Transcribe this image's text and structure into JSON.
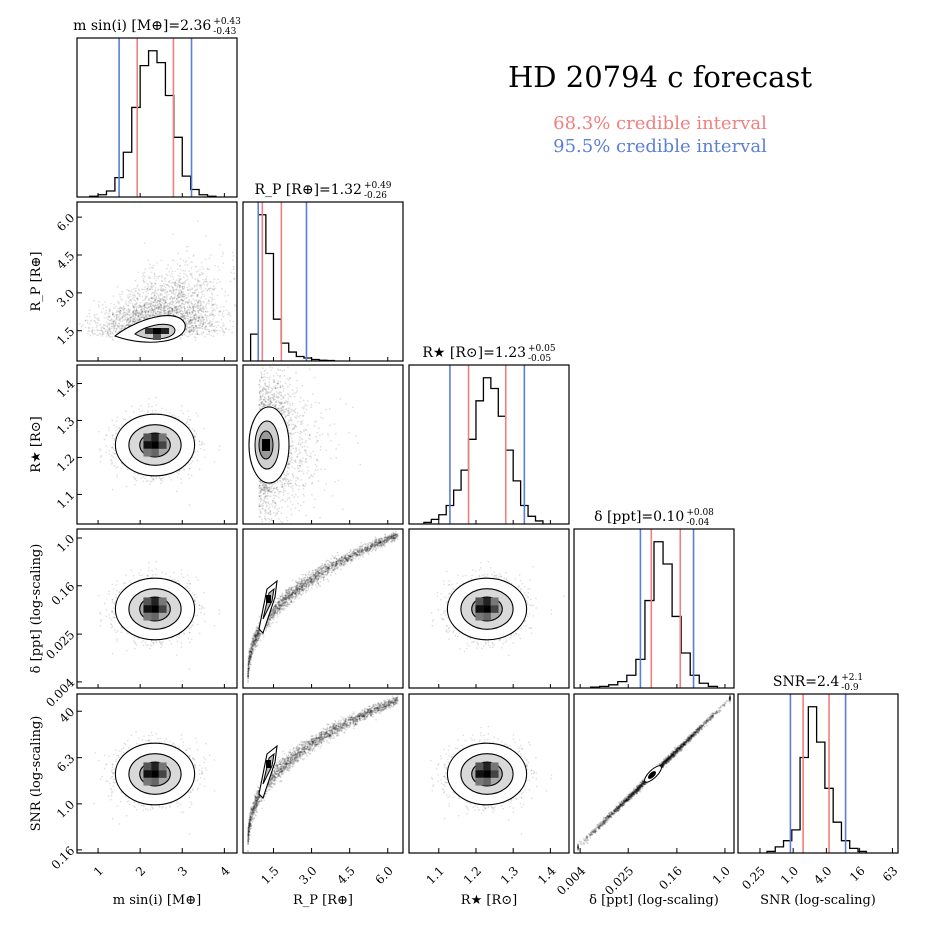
{
  "chart_data": {
    "type": "corner",
    "title": "HD 20794 c forecast",
    "legend": [
      {
        "label": "68.3% credible interval",
        "color": "#f08080"
      },
      {
        "label": "95.5% credible interval",
        "color": "#5b7fd6"
      }
    ],
    "interval_colors": {
      "ci68": "#f08080",
      "ci95": "#5b7fd6"
    },
    "parameters": [
      {
        "key": "m",
        "axis_label": "m sin(i) [M⊕]",
        "title": {
          "name": "m sin(i) [M⊕]",
          "median": "2.36",
          "plus": "+0.43",
          "minus": "-0.43"
        },
        "range": [
          0.5,
          4.3
        ],
        "ticks": [
          {
            "v": 1,
            "t": "1"
          },
          {
            "v": 2,
            "t": "2"
          },
          {
            "v": 3,
            "t": "3"
          },
          {
            "v": 4,
            "t": "4"
          }
        ],
        "median": 2.36,
        "ci68": [
          1.93,
          2.79
        ],
        "ci95": [
          1.5,
          3.22
        ],
        "hist_centers": [
          0.9,
          1.1,
          1.3,
          1.5,
          1.7,
          1.9,
          2.1,
          2.3,
          2.5,
          2.7,
          2.9,
          3.1,
          3.3,
          3.5,
          3.7
        ],
        "hist_values": [
          0.5,
          1.5,
          4,
          13,
          30,
          60,
          88,
          98,
          90,
          68,
          40,
          14,
          5,
          1.5,
          0.5
        ]
      },
      {
        "key": "rp",
        "axis_label": "R_P [R⊕]",
        "title": {
          "name": "R_P [R⊕]",
          "median": "1.32",
          "plus": "+0.49",
          "minus": "-0.26"
        },
        "range": [
          0.3,
          6.6
        ],
        "ticks": [
          {
            "v": 1.5,
            "t": "1.5"
          },
          {
            "v": 3.0,
            "t": "3.0"
          },
          {
            "v": 4.5,
            "t": "4.5"
          },
          {
            "v": 6.0,
            "t": "6.0"
          }
        ],
        "median": 1.32,
        "ci68": [
          1.06,
          1.81
        ],
        "ci95": [
          0.9,
          2.8
        ],
        "hist_centers": [
          0.75,
          1.05,
          1.35,
          1.65,
          1.95,
          2.25,
          2.55,
          2.85,
          3.15,
          3.45,
          3.75
        ],
        "hist_values": [
          18,
          98,
          72,
          28,
          12,
          6,
          3,
          2,
          1,
          0.5,
          0.3
        ]
      },
      {
        "key": "rs",
        "axis_label": "R★ [R⊙]",
        "title": {
          "name": "R★ [R⊙]",
          "median": "1.23",
          "plus": "+0.05",
          "minus": "-0.05"
        },
        "range": [
          1.02,
          1.45
        ],
        "ticks": [
          {
            "v": 1.1,
            "t": "1.1"
          },
          {
            "v": 1.2,
            "t": "1.2"
          },
          {
            "v": 1.3,
            "t": "1.3"
          },
          {
            "v": 1.4,
            "t": "1.4"
          }
        ],
        "median": 1.23,
        "ci68": [
          1.18,
          1.28
        ],
        "ci95": [
          1.13,
          1.33
        ],
        "hist_centers": [
          1.07,
          1.09,
          1.11,
          1.13,
          1.15,
          1.17,
          1.19,
          1.21,
          1.23,
          1.25,
          1.27,
          1.29,
          1.31,
          1.33,
          1.35,
          1.37
        ],
        "hist_values": [
          1,
          3,
          6,
          12,
          22,
          35,
          55,
          80,
          95,
          88,
          70,
          48,
          28,
          12,
          5,
          2
        ]
      },
      {
        "key": "delta",
        "axis_label": "δ [ppt] (log-scaling)",
        "title": {
          "name": "δ [ppt]",
          "median": "0.10",
          "plus": "+0.08",
          "minus": "-0.04"
        },
        "range": [
          -2.5,
          0.15
        ],
        "ticks": [
          {
            "v": -2.398,
            "t": "0.004"
          },
          {
            "v": -1.602,
            "t": "0.025"
          },
          {
            "v": -0.796,
            "t": "0.16"
          },
          {
            "v": 0,
            "t": "1.0"
          }
        ],
        "median": -1.0,
        "ci68": [
          -1.22,
          -0.74
        ],
        "ci95": [
          -1.4,
          -0.52
        ],
        "hist_centers": [
          -2.15,
          -2.0,
          -1.85,
          -1.7,
          -1.55,
          -1.4,
          -1.25,
          -1.1,
          -0.95,
          -0.8,
          -0.65,
          -0.5,
          -0.35,
          -0.2
        ],
        "hist_values": [
          0.5,
          1,
          2,
          4,
          8,
          18,
          55,
          92,
          78,
          45,
          22,
          8,
          3,
          1
        ]
      },
      {
        "key": "snr",
        "axis_label": "SNR (log-scaling)",
        "title": {
          "name": "SNR",
          "median": "2.4",
          "plus": "+2.1",
          "minus": "-0.9"
        },
        "range": [
          -1.0,
          1.9
        ],
        "ticks": [
          {
            "v": -0.602,
            "t": "0.25"
          },
          {
            "v": 0,
            "t": "1.0"
          },
          {
            "v": 0.602,
            "t": "4.0"
          },
          {
            "v": 1.204,
            "t": "16"
          },
          {
            "v": 1.799,
            "t": "63"
          }
        ],
        "median": 0.38,
        "ci68": [
          0.18,
          0.65
        ],
        "ci95": [
          -0.05,
          0.95
        ],
        "hist_centers": [
          -0.4,
          -0.25,
          -0.1,
          0.05,
          0.2,
          0.35,
          0.5,
          0.65,
          0.8,
          0.95,
          1.1,
          1.25
        ],
        "hist_values": [
          1,
          4,
          8,
          15,
          62,
          95,
          72,
          42,
          20,
          8,
          3,
          1
        ]
      }
    ],
    "row_ticks": {
      "rp": [
        {
          "v": 1.5,
          "t": "1.5"
        },
        {
          "v": 3.0,
          "t": "3.0"
        },
        {
          "v": 4.5,
          "t": "4.5"
        },
        {
          "v": 6.0,
          "t": "6.0"
        }
      ],
      "rs": [
        {
          "v": 1.1,
          "t": "1.1"
        },
        {
          "v": 1.2,
          "t": "1.2"
        },
        {
          "v": 1.3,
          "t": "1.3"
        },
        {
          "v": 1.4,
          "t": "1.4"
        }
      ],
      "delta": [
        {
          "v": -2.398,
          "t": "0.004"
        },
        {
          "v": -1.602,
          "t": "0.025"
        },
        {
          "v": -0.796,
          "t": "0.16"
        },
        {
          "v": 0,
          "t": "1.0"
        }
      ],
      "snr": [
        {
          "v": -0.796,
          "t": "0.16"
        },
        {
          "v": 0,
          "t": "1.0"
        },
        {
          "v": 0.799,
          "t": "6.3"
        },
        {
          "v": 1.602,
          "t": "40"
        }
      ]
    },
    "snr_row_range": [
      -0.85,
      1.9
    ],
    "correlations": [
      {
        "row": 1,
        "col": 0,
        "type": "rp_m"
      },
      {
        "row": 2,
        "col": 0,
        "type": "blob"
      },
      {
        "row": 2,
        "col": 1,
        "type": "rp_rs"
      },
      {
        "row": 3,
        "col": 0,
        "type": "blob"
      },
      {
        "row": 3,
        "col": 1,
        "type": "curve"
      },
      {
        "row": 3,
        "col": 2,
        "type": "blob"
      },
      {
        "row": 4,
        "col": 0,
        "type": "blob"
      },
      {
        "row": 4,
        "col": 1,
        "type": "curve"
      },
      {
        "row": 4,
        "col": 2,
        "type": "blob"
      },
      {
        "row": 4,
        "col": 3,
        "type": "line"
      }
    ]
  }
}
